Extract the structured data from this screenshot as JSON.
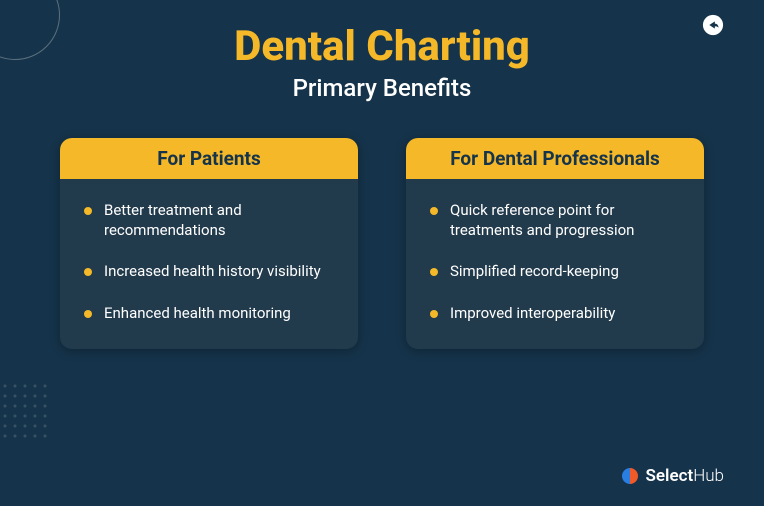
{
  "colors": {
    "background": "#15334a",
    "accent": "#f4b828",
    "card_header_bg": "#f4b828",
    "card_header_text": "#15334a",
    "card_body_bg": "#213a4c",
    "card_body_text": "#ffffff",
    "title_color": "#f4b828",
    "subtitle_color": "#ffffff",
    "bullet_color": "#f4b828",
    "logo_text": "#ffffff",
    "logo_mark_left": "#2a7de1",
    "logo_mark_right": "#f05a28",
    "decorative_stroke": "rgba(255,255,255,0.3)"
  },
  "header": {
    "title": "Dental Charting",
    "subtitle": "Primary Benefits",
    "title_fontsize": 42,
    "subtitle_fontsize": 24
  },
  "cards": [
    {
      "heading": "For Patients",
      "items": [
        "Better treatment and recommendations",
        "Increased health history visibility",
        "Enhanced health monitoring"
      ]
    },
    {
      "heading": "For Dental Professionals",
      "items": [
        "Quick reference point for treatments and progression",
        "Simplified record-keeping",
        "Improved interoperability"
      ]
    }
  ],
  "footer": {
    "brand_bold": "Select",
    "brand_light": "Hub"
  },
  "icons": {
    "share": "share-icon"
  }
}
